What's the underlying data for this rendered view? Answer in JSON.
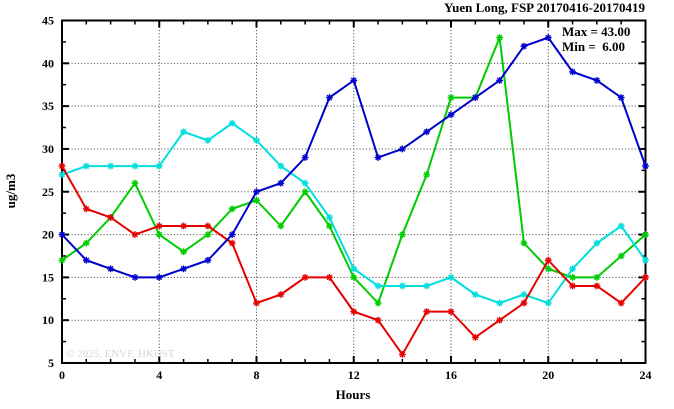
{
  "title": "Yuen Long, FSP 20170416-20170419",
  "annotation": {
    "max_label": "Max = 43.00",
    "min_label": "Min =  6.00"
  },
  "watermark": "© 2025, ENVF, HKUST",
  "chart_data": {
    "type": "line",
    "title": "Yuen Long, FSP 20170416-20170419",
    "xlabel": "Hours",
    "ylabel": "ug/m3",
    "xlim": [
      0,
      24
    ],
    "ylim": [
      5,
      45
    ],
    "x_major_ticks": [
      0,
      4,
      8,
      12,
      16,
      20,
      24
    ],
    "x_minor_step": 1,
    "y_major_ticks": [
      5,
      10,
      15,
      20,
      25,
      30,
      35,
      40,
      45
    ],
    "y_minor_step": 2.5,
    "grid": true,
    "legend": "none",
    "marker": "asterisk",
    "x": [
      0,
      1,
      2,
      3,
      4,
      5,
      6,
      7,
      8,
      9,
      10,
      11,
      12,
      13,
      14,
      15,
      16,
      17,
      18,
      19,
      20,
      21,
      22,
      23,
      24
    ],
    "series": [
      {
        "name": "green-series",
        "color": "#00cc00",
        "values": [
          17,
          19,
          22,
          26,
          20,
          18,
          20,
          23,
          24,
          21,
          25,
          21,
          15,
          12,
          20,
          27,
          36,
          36,
          43,
          19,
          16,
          15,
          15,
          17.5,
          20
        ]
      },
      {
        "name": "cyan-series",
        "color": "#00dede",
        "values": [
          27,
          28,
          28,
          28,
          28,
          32,
          31,
          33,
          31,
          28,
          26,
          22,
          16,
          14,
          14,
          14,
          15,
          13,
          12,
          13,
          12,
          16,
          19,
          21,
          17
        ]
      },
      {
        "name": "red-series",
        "color": "#e60000",
        "values": [
          28,
          23,
          22,
          20,
          21,
          21,
          21,
          19,
          12,
          13,
          15,
          15,
          11,
          10,
          6,
          11,
          11,
          8,
          10,
          12,
          17,
          14,
          14,
          12,
          15
        ]
      },
      {
        "name": "blue-series",
        "color": "#0000cd",
        "values": [
          20,
          17,
          16,
          15,
          15,
          16,
          17,
          20,
          25,
          26,
          29,
          36,
          38,
          29,
          30,
          32,
          34,
          36,
          38,
          42,
          43,
          39,
          38,
          36,
          28
        ]
      }
    ],
    "annotations": {
      "max": 43.0,
      "min": 6.0
    }
  }
}
